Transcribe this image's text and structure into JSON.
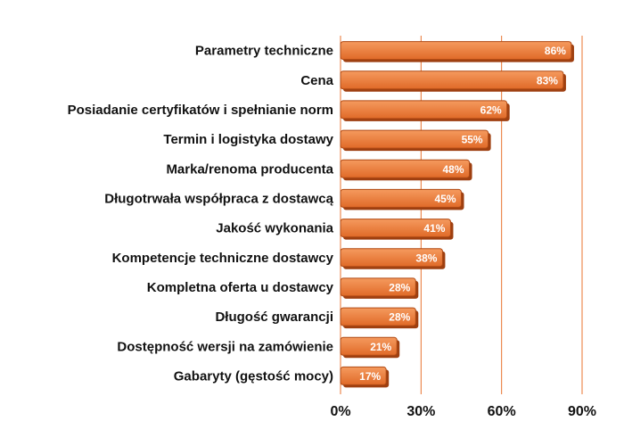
{
  "chart_data": {
    "type": "bar",
    "orientation": "horizontal",
    "categories": [
      "Parametry techniczne",
      "Cena",
      "Posiadanie certyfikatów i spełnianie norm",
      "Termin i logistyka dostawy",
      "Marka/renoma producenta",
      "Długotrwała współpraca z dostawcą",
      "Jakość wykonania",
      "Kompetencje techniczne dostawcy",
      "Kompletna oferta u dostawcy",
      "Długość gwarancji",
      "Dostępność wersji na zamówienie",
      "Gabaryty (gęstość mocy)"
    ],
    "values": [
      86,
      83,
      62,
      55,
      48,
      45,
      41,
      38,
      28,
      28,
      21,
      17
    ],
    "data_labels": [
      "86%",
      "83%",
      "62%",
      "55%",
      "48%",
      "45%",
      "41%",
      "38%",
      "28%",
      "28%",
      "21%",
      "17%"
    ],
    "xlim": [
      0,
      90
    ],
    "x_ticks": [
      0,
      30,
      60,
      90
    ],
    "x_tick_labels": [
      "0%",
      "30%",
      "60%",
      "90%"
    ],
    "title": "",
    "xlabel": "",
    "ylabel": "",
    "grid": "vertical",
    "legend": "none",
    "colors": {
      "bar_top": "#f59a5e",
      "bar_bottom": "#e06a28",
      "bar_stroke": "#b04a14",
      "bar_shadow": "#9e3f10",
      "gridline": "#e8732f",
      "axis_text": "#111111",
      "data_label": "#ffffff"
    }
  }
}
